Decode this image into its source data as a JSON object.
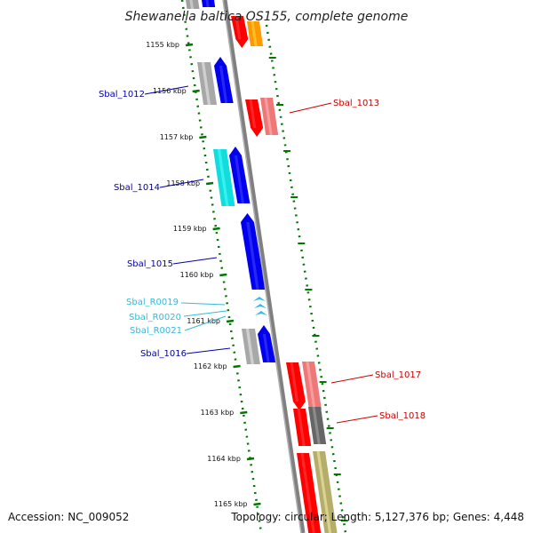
{
  "title": "Shewanella baltica OS155, complete genome",
  "footer": {
    "accession": "Accession: NC_009052",
    "summary": "Topology: circular; Length: 5,127,376 bp; Genes: 4,448"
  },
  "colors": {
    "backbone": "#808080",
    "forward_strand_cds": "#0000ee",
    "reverse_strand_cds": "#ff0000",
    "rna": "#33bbee",
    "ticks": "#007700",
    "label_forward": "#0000aa",
    "label_reverse": "#cc0000",
    "label_rna": "#33bbdd"
  },
  "ticks": [
    {
      "label": "1155 kbp"
    },
    {
      "label": "1156 kbp"
    },
    {
      "label": "1157 kbp"
    },
    {
      "label": "1158 kbp"
    },
    {
      "label": "1159 kbp"
    },
    {
      "label": "1160 kbp"
    },
    {
      "label": "1161 kbp"
    },
    {
      "label": "1162 kbp"
    },
    {
      "label": "1163 kbp"
    },
    {
      "label": "1164 kbp"
    },
    {
      "label": "1165 kbp"
    }
  ],
  "gene_labels": [
    {
      "text": "Sbal_1012",
      "strand": "forward"
    },
    {
      "text": "Sbal_1013",
      "strand": "reverse"
    },
    {
      "text": "Sbal_1014",
      "strand": "forward"
    },
    {
      "text": "Sbal_1015",
      "strand": "forward"
    },
    {
      "text": "Sbal_R0019",
      "strand": "rna"
    },
    {
      "text": "Sbal_R0020",
      "strand": "rna"
    },
    {
      "text": "Sbal_R0021",
      "strand": "rna"
    },
    {
      "text": "Sbal_1016",
      "strand": "forward"
    },
    {
      "text": "Sbal_1017",
      "strand": "reverse"
    },
    {
      "text": "Sbal_1018",
      "strand": "reverse"
    }
  ]
}
